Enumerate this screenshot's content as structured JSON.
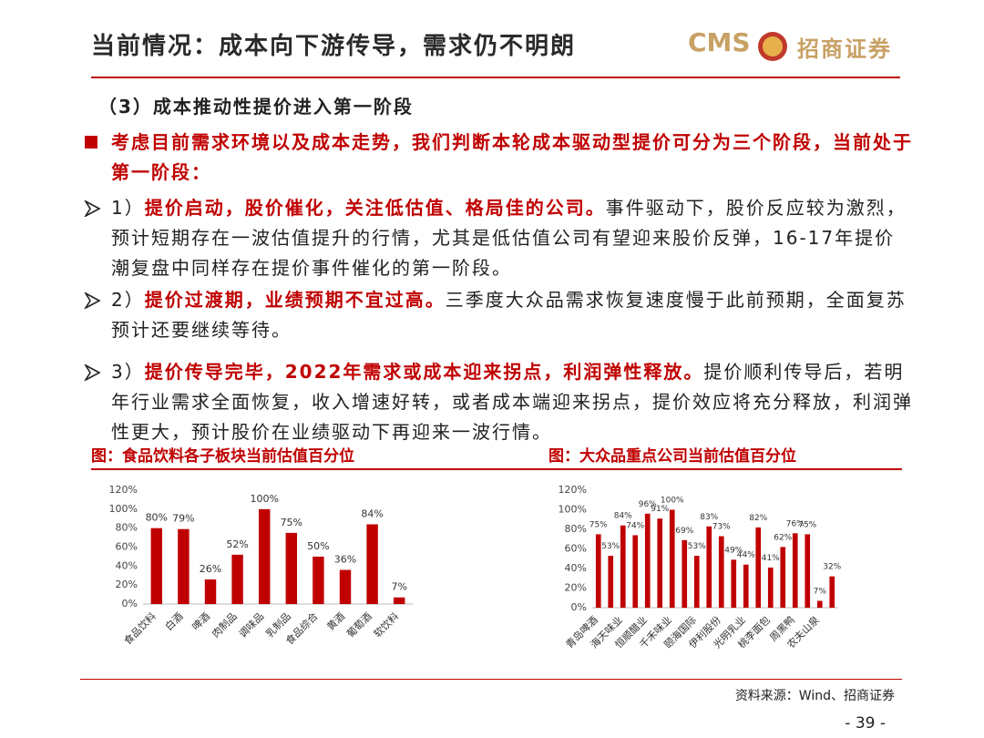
{
  "header": {
    "title": "当前情况：成本向下游传导，需求仍不明朗",
    "logo_text": "CMS",
    "logo_name": "招商证券"
  },
  "subtitle": "（3）成本推动性提价进入第一阶段",
  "lead": "考虑目前需求环境以及成本走势，我们判断本轮成本驱动型提价可分为三个阶段，当前处于第一阶段：",
  "points": [
    {
      "number": "1）",
      "highlight": "提价启动，股价催化，关注低估值、格局佳的公司。",
      "text": "事件驱动下，股价反应较为激烈，预计短期存在一波估值提升的行情，尤其是低估值公司有望迎来股价反弹，16-17年提价潮复盘中同样存在提价事件催化的第一阶段。"
    },
    {
      "number": "2）",
      "highlight": "提价过渡期，业绩预期不宜过高。",
      "text": "三季度大众品需求恢复速度慢于此前预期，全面复苏预计还要继续等待。"
    },
    {
      "number": "3）",
      "highlight": "提价传导完毕，2022年需求或成本迎来拐点，利润弹性释放。",
      "text": "提价顺利传导后，若明年行业需求全面恢复，收入增速好转，或者成本端迎来拐点，提价效应将充分释放，利润弹性更大，预计股价在业绩驱动下再迎来一波行情。"
    }
  ],
  "chart_data": [
    {
      "type": "bar",
      "title": "图：食品饮料各子板块当前估值百分位",
      "color": "#c00000",
      "categories": [
        "食品饮料",
        "白酒",
        "啤酒",
        "肉制品",
        "调味品",
        "乳制品",
        "食品综合",
        "黄酒",
        "葡萄酒",
        "软饮料"
      ],
      "values": [
        80,
        79,
        26,
        52,
        100,
        75,
        50,
        36,
        84,
        7
      ],
      "value_labels": [
        "80%",
        "79%",
        "26%",
        "52%",
        "100%",
        "75%",
        "50%",
        "36%",
        "84%",
        "7%"
      ],
      "ylim": [
        0,
        120
      ],
      "yticks": [
        {
          "value": 0,
          "label": "0%"
        },
        {
          "value": 20,
          "label": "20%"
        },
        {
          "value": 40,
          "label": "40%"
        },
        {
          "value": 60,
          "label": "60%"
        },
        {
          "value": 80,
          "label": "80%"
        },
        {
          "value": 100,
          "label": "100%"
        },
        {
          "value": 120,
          "label": "120%"
        }
      ]
    },
    {
      "type": "bar",
      "title": "图：大众品重点公司当前估值百分位",
      "color": "#c00000",
      "categories": [
        "青岛啤酒",
        null,
        "海天味业",
        null,
        "恒顺醋业",
        null,
        "千禾味业",
        null,
        "颐海国际",
        null,
        "伊利股份",
        null,
        "光明乳业",
        null,
        "桃李面包",
        null,
        "周黑鸭",
        null,
        "农夫山泉",
        null
      ],
      "values": [
        75,
        53,
        84,
        74,
        96,
        91,
        100,
        69,
        53,
        83,
        73,
        49,
        44,
        82,
        41,
        62,
        76,
        75,
        7,
        32
      ],
      "value_labels": [
        "75%",
        "53%",
        "84%",
        "74%",
        "96%",
        "91%",
        "100%",
        "69%",
        "53%",
        "83%",
        "73%",
        "49%",
        "44%",
        "82%",
        "41%",
        "62%",
        "76%",
        "75%",
        "7%",
        "32%"
      ],
      "ylim": [
        0,
        120
      ],
      "yticks": [
        {
          "value": 0,
          "label": "0%"
        },
        {
          "value": 20,
          "label": "20%"
        },
        {
          "value": 40,
          "label": "40%"
        },
        {
          "value": 60,
          "label": "60%"
        },
        {
          "value": 80,
          "label": "80%"
        },
        {
          "value": 100,
          "label": "100%"
        },
        {
          "value": 120,
          "label": "120%"
        }
      ]
    }
  ],
  "source": "资料来源：Wind、招商证券",
  "page_number": "- 39 -"
}
